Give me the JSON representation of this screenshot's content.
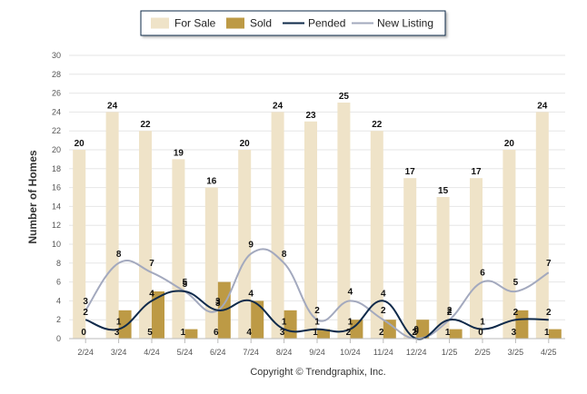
{
  "chart_data": {
    "type": "bar",
    "categories": [
      "2/24",
      "3/24",
      "4/24",
      "5/24",
      "6/24",
      "7/24",
      "8/24",
      "9/24",
      "10/24",
      "11/24",
      "12/24",
      "1/25",
      "2/25",
      "3/25",
      "4/25"
    ],
    "ylabel": "Number of Homes",
    "xlabel": "",
    "ylim": [
      0,
      30
    ],
    "yticks": [
      0,
      2,
      4,
      6,
      8,
      10,
      12,
      14,
      16,
      18,
      20,
      22,
      24,
      26,
      28,
      30
    ],
    "grid": true,
    "legend_position": "top-center",
    "series": [
      {
        "name": "For Sale",
        "kind": "bar",
        "color": "#EFE3C8",
        "values": [
          20,
          24,
          22,
          19,
          16,
          20,
          24,
          23,
          25,
          22,
          17,
          15,
          17,
          20,
          24
        ]
      },
      {
        "name": "Sold",
        "kind": "bar",
        "color": "#BD9A45",
        "values": [
          0,
          3,
          5,
          1,
          6,
          4,
          3,
          1,
          2,
          2,
          2,
          1,
          0,
          3,
          1
        ]
      },
      {
        "name": "Pended",
        "kind": "line",
        "color": "#0F2A4A",
        "values": [
          2,
          1,
          4,
          5,
          3,
          4,
          1,
          1,
          1,
          4,
          0,
          2,
          1,
          2,
          2
        ]
      },
      {
        "name": "New Listing",
        "kind": "line",
        "color": "#A3A9BE",
        "values": [
          3,
          8,
          7,
          5,
          3,
          9,
          8,
          2,
          4,
          2,
          0,
          2,
          6,
          5,
          7
        ]
      }
    ]
  },
  "footer": {
    "copyright": "Copyright © Trendgraphix, Inc."
  }
}
